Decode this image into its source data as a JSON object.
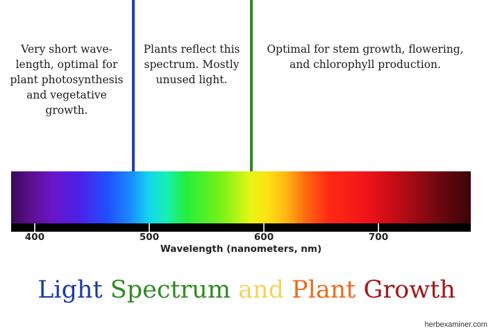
{
  "annotations": {
    "left": "Very short wave-length, optimal for plant photosynthesis and vegetative growth.",
    "middle": "Plants reflect this spectrum. Mostly unused light.",
    "right": "Optimal for stem growth, flowering, and chlorophyll production."
  },
  "markers": [
    {
      "nm": 487,
      "color": "#1f3fb0"
    },
    {
      "nm": 590,
      "color": "#2f8a2a"
    }
  ],
  "axis": {
    "title": "Wavelength (nanometers, nm)",
    "ticks": [
      "400",
      "500",
      "600",
      "700"
    ],
    "range_nm": [
      380,
      780
    ]
  },
  "title": {
    "word1": "Light",
    "word2": "Spectrum",
    "word3": "and",
    "word4": "Plant",
    "word5": "Growth",
    "colors": [
      "#1e3aa8",
      "#2e8b23",
      "#f2d45c",
      "#ee6a1a",
      "#a3161a"
    ]
  },
  "footer": "herbexaminer.com"
}
